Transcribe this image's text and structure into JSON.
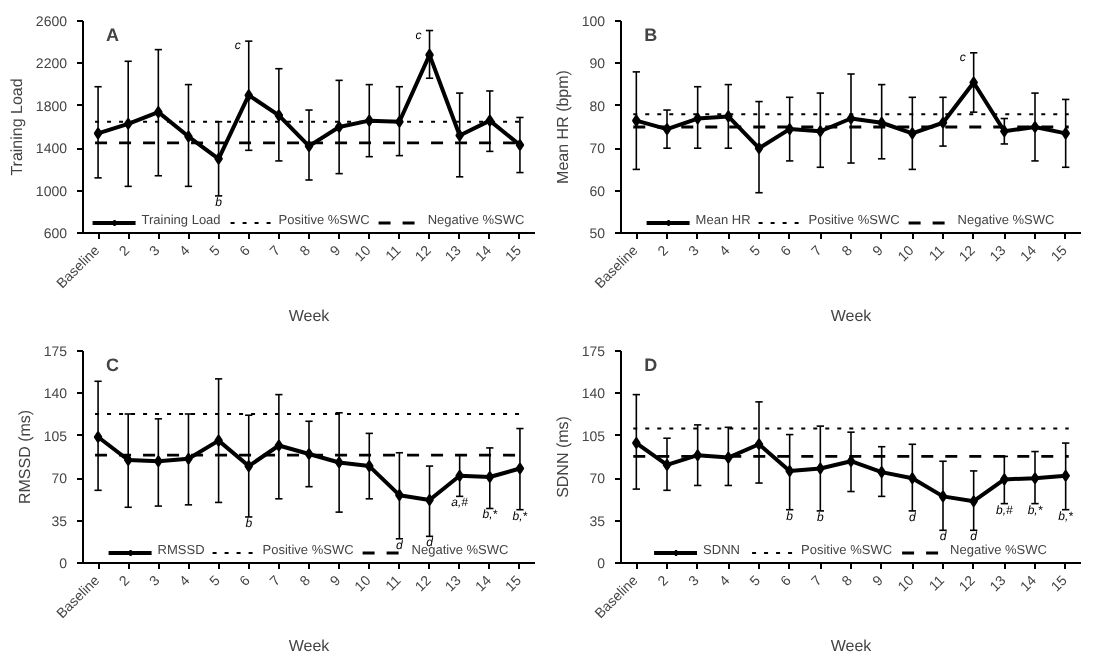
{
  "chart_data": [
    {
      "type": "line",
      "title": "A",
      "xlabel": "Week",
      "ylabel": "Training Load",
      "categories": [
        "Baseline",
        "2",
        "3",
        "4",
        "5",
        "6",
        "7",
        "8",
        "9",
        "10",
        "11",
        "12",
        "13",
        "14",
        "15"
      ],
      "series": [
        {
          "name": "Training Load",
          "color": "#000000",
          "values": [
            1540,
            1630,
            1740,
            1510,
            1300,
            1900,
            1710,
            1420,
            1600,
            1660,
            1650,
            2280,
            1520,
            1660,
            1430
          ],
          "errors": [
            [
              1120,
              1980
            ],
            [
              1040,
              2220
            ],
            [
              1140,
              2330
            ],
            [
              1040,
              2000
            ],
            [
              950,
              1650
            ],
            [
              1380,
              2410
            ],
            [
              1280,
              2150
            ],
            [
              1100,
              1760
            ],
            [
              1160,
              2040
            ],
            [
              1320,
              2000
            ],
            [
              1330,
              1980
            ],
            [
              2060,
              2510
            ],
            [
              1130,
              1920
            ],
            [
              1370,
              1940
            ],
            [
              1170,
              1690
            ]
          ]
        }
      ],
      "ref_lines": [
        {
          "axis": "y",
          "value": 1650,
          "label": "Positive %SWC",
          "line_style": "dotted",
          "color": "#000000"
        },
        {
          "axis": "y",
          "value": 1450,
          "label": "Negative %SWC",
          "line_style": "dashed",
          "color": "#000000"
        }
      ],
      "annotations": [
        {
          "text": "b",
          "x": "5",
          "y": 950
        },
        {
          "text": "c",
          "x": "6",
          "y": 2410
        },
        {
          "text": "c",
          "x": "12",
          "y": 2510
        }
      ],
      "ylim": [
        600,
        2600
      ],
      "yticks": [
        600,
        1000,
        1400,
        1800,
        2200,
        2600
      ],
      "grid": false,
      "legend": "bottom",
      "marker": "diamond",
      "line_style": "solid"
    },
    {
      "type": "line",
      "title": "B",
      "xlabel": "Week",
      "ylabel": "Mean HR (bpm)",
      "categories": [
        "Baseline",
        "2",
        "3",
        "4",
        "5",
        "6",
        "7",
        "8",
        "9",
        "10",
        "11",
        "12",
        "13",
        "14",
        "15"
      ],
      "series": [
        {
          "name": "Mean HR",
          "color": "#000000",
          "values": [
            76.5,
            74.5,
            77,
            77.5,
            70,
            74.5,
            74,
            77,
            76,
            73.5,
            76,
            85.5,
            74,
            75,
            73.5
          ],
          "errors": [
            [
              65,
              88
            ],
            [
              70,
              79
            ],
            [
              70,
              84.5
            ],
            [
              70,
              85
            ],
            [
              59.5,
              81
            ],
            [
              67,
              82
            ],
            [
              65.5,
              83
            ],
            [
              66.5,
              87.5
            ],
            [
              67.5,
              85
            ],
            [
              65,
              82
            ],
            [
              70.5,
              82
            ],
            [
              78.5,
              92.5
            ],
            [
              71,
              77
            ],
            [
              67,
              83
            ],
            [
              65.5,
              81.5
            ]
          ]
        }
      ],
      "ref_lines": [
        {
          "axis": "y",
          "value": 78,
          "label": "Positive %SWC",
          "line_style": "dotted",
          "color": "#000000"
        },
        {
          "axis": "y",
          "value": 75,
          "label": "Negative %SWC",
          "line_style": "dashed",
          "color": "#000000"
        }
      ],
      "annotations": [
        {
          "text": "c",
          "x": "12",
          "y": 92.5
        }
      ],
      "ylim": [
        50,
        100
      ],
      "yticks": [
        50,
        60,
        70,
        80,
        90,
        100
      ],
      "grid": false,
      "legend": "bottom",
      "marker": "diamond",
      "line_style": "solid"
    },
    {
      "type": "line",
      "title": "C",
      "xlabel": "Week",
      "ylabel": "RMSSD (ms)",
      "categories": [
        "Baseline",
        "2",
        "3",
        "4",
        "5",
        "6",
        "7",
        "8",
        "9",
        "10",
        "11",
        "12",
        "13",
        "14",
        "15"
      ],
      "series": [
        {
          "name": "RMSSD",
          "color": "#000000",
          "values": [
            104,
            85,
            84,
            86,
            101,
            80,
            97,
            90,
            83,
            80,
            56,
            52,
            72,
            71,
            78
          ],
          "errors": [
            [
              60,
              150
            ],
            [
              46,
              123
            ],
            [
              47,
              119
            ],
            [
              48,
              123
            ],
            [
              50,
              152
            ],
            [
              38,
              122
            ],
            [
              53,
              139
            ],
            [
              63,
              117
            ],
            [
              42,
              124
            ],
            [
              53,
              107
            ],
            [
              20,
              91
            ],
            [
              22,
              80
            ],
            [
              55,
              89
            ],
            [
              45,
              95
            ],
            [
              44,
              111
            ]
          ]
        }
      ],
      "ref_lines": [
        {
          "axis": "y",
          "value": 123,
          "label": "Positive %SWC",
          "line_style": "dotted",
          "color": "#000000"
        },
        {
          "axis": "y",
          "value": 89,
          "label": "Negative %SWC",
          "line_style": "dashed",
          "color": "#000000"
        }
      ],
      "annotations": [
        {
          "text": "b",
          "x": "6",
          "y": 38
        },
        {
          "text": "d",
          "x": "11",
          "y": 20
        },
        {
          "text": "d",
          "x": "12",
          "y": 22
        },
        {
          "text": "a,#",
          "x": "13",
          "y": 55
        },
        {
          "text": "b,*",
          "x": "14",
          "y": 45
        },
        {
          "text": "b,*",
          "x": "15",
          "y": 44
        }
      ],
      "ylim": [
        0,
        175
      ],
      "yticks": [
        0,
        35,
        70,
        105,
        140,
        175
      ],
      "grid": false,
      "legend": "bottom",
      "marker": "diamond",
      "line_style": "solid"
    },
    {
      "type": "line",
      "title": "D",
      "xlabel": "Week",
      "ylabel": "SDNN (ms)",
      "categories": [
        "Baseline",
        "2",
        "3",
        "4",
        "5",
        "6",
        "7",
        "8",
        "9",
        "10",
        "11",
        "12",
        "13",
        "14",
        "15"
      ],
      "series": [
        {
          "name": "SDNN",
          "color": "#000000",
          "values": [
            99,
            81,
            89,
            87,
            98,
            76,
            78,
            84,
            75,
            70,
            55,
            51,
            69,
            70,
            72
          ],
          "errors": [
            [
              61,
              139
            ],
            [
              60,
              103
            ],
            [
              64,
              114
            ],
            [
              64,
              112
            ],
            [
              66,
              133
            ],
            [
              44,
              106
            ],
            [
              43,
              113
            ],
            [
              59,
              108
            ],
            [
              55,
              96
            ],
            [
              43,
              98
            ],
            [
              27,
              84
            ],
            [
              27,
              76
            ],
            [
              49,
              88
            ],
            [
              49,
              92
            ],
            [
              44,
              99
            ]
          ]
        }
      ],
      "ref_lines": [
        {
          "axis": "y",
          "value": 111,
          "label": "Positive %SWC",
          "line_style": "dotted",
          "color": "#000000"
        },
        {
          "axis": "y",
          "value": 88,
          "label": "Negative %SWC",
          "line_style": "dashed",
          "color": "#000000"
        }
      ],
      "annotations": [
        {
          "text": "b",
          "x": "6",
          "y": 44
        },
        {
          "text": "b",
          "x": "7",
          "y": 43
        },
        {
          "text": "d",
          "x": "10",
          "y": 43
        },
        {
          "text": "d",
          "x": "11",
          "y": 27
        },
        {
          "text": "d",
          "x": "12",
          "y": 27
        },
        {
          "text": "b,#",
          "x": "13",
          "y": 49
        },
        {
          "text": "b,*",
          "x": "14",
          "y": 49
        },
        {
          "text": "b,*",
          "x": "15",
          "y": 44
        }
      ],
      "ylim": [
        0,
        175
      ],
      "yticks": [
        0,
        35,
        70,
        105,
        140,
        175
      ],
      "grid": false,
      "legend": "bottom",
      "marker": "diamond",
      "line_style": "solid"
    }
  ]
}
